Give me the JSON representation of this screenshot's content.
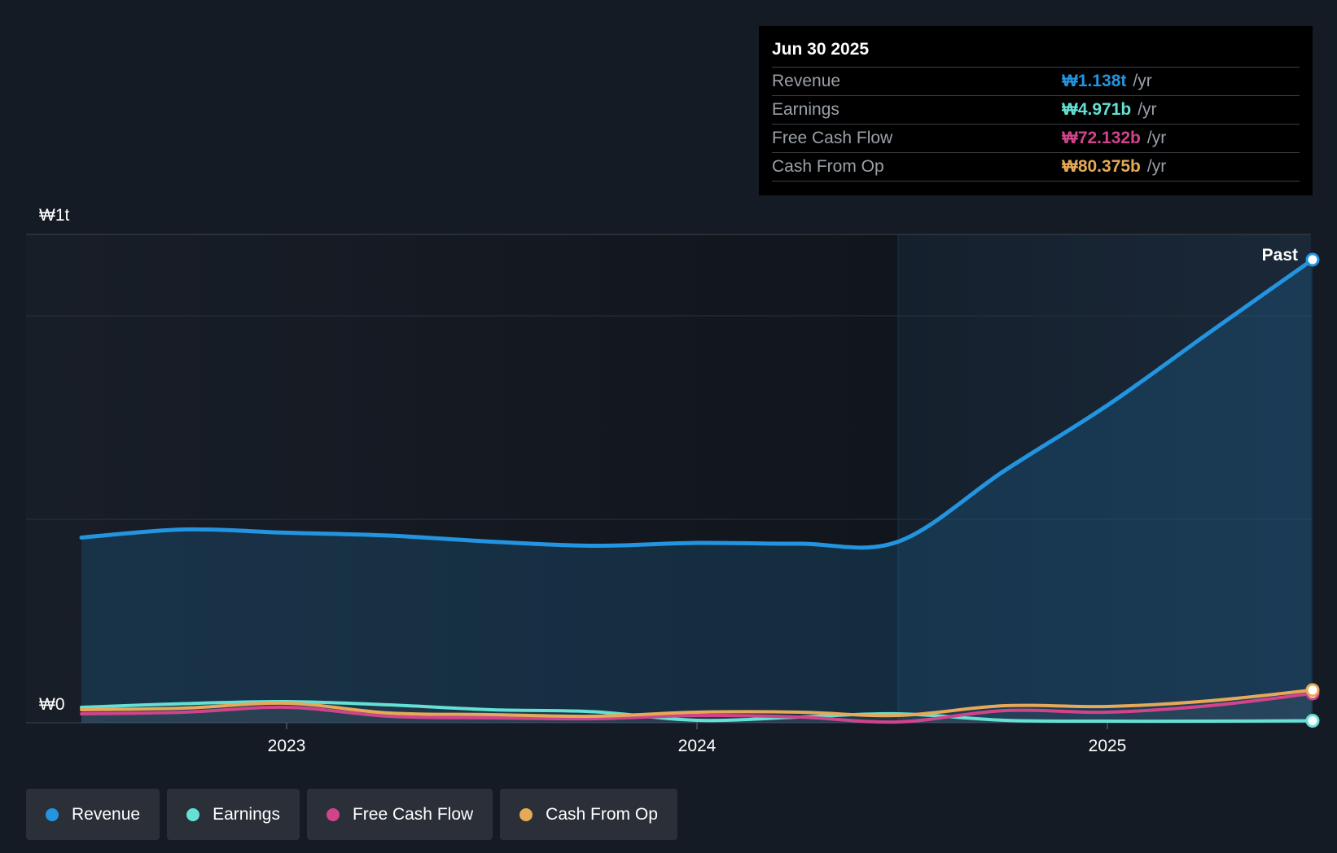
{
  "chart_data": {
    "type": "line",
    "title": "",
    "y_axis": {
      "top_label": "₩1t",
      "bottom_label": "₩0",
      "ylim": [
        0,
        1200
      ]
    },
    "x_ticks": [
      {
        "label": "2023",
        "x": 2023.0
      },
      {
        "label": "2024",
        "x": 2024.0
      },
      {
        "label": "2025",
        "x": 2025.0
      }
    ],
    "xlim": [
      2022.38,
      2025.5
    ],
    "past_boundary": 2024.49,
    "past_label": "Past",
    "series": [
      {
        "name": "Revenue",
        "color": "#2394df",
        "fill": true,
        "points": [
          [
            2022.5,
            455
          ],
          [
            2022.75,
            475
          ],
          [
            2023.0,
            467
          ],
          [
            2023.25,
            460
          ],
          [
            2023.5,
            445
          ],
          [
            2023.75,
            435
          ],
          [
            2024.0,
            442
          ],
          [
            2024.25,
            440
          ],
          [
            2024.49,
            445
          ],
          [
            2024.75,
            620
          ],
          [
            2025.0,
            780
          ],
          [
            2025.25,
            960
          ],
          [
            2025.5,
            1138
          ]
        ]
      },
      {
        "name": "Earnings",
        "color": "#64e1d4",
        "fill": false,
        "points": [
          [
            2022.5,
            38
          ],
          [
            2022.75,
            47
          ],
          [
            2023.0,
            52
          ],
          [
            2023.25,
            44
          ],
          [
            2023.5,
            32
          ],
          [
            2023.75,
            27
          ],
          [
            2024.0,
            6
          ],
          [
            2024.25,
            14
          ],
          [
            2024.49,
            22
          ],
          [
            2024.75,
            6
          ],
          [
            2025.0,
            4
          ],
          [
            2025.25,
            4
          ],
          [
            2025.5,
            4.971
          ]
        ]
      },
      {
        "name": "Free Cash Flow",
        "color": "#d0448c",
        "fill": false,
        "points": [
          [
            2022.5,
            22
          ],
          [
            2022.75,
            26
          ],
          [
            2023.0,
            38
          ],
          [
            2023.25,
            16
          ],
          [
            2023.5,
            12
          ],
          [
            2023.75,
            10
          ],
          [
            2024.0,
            18
          ],
          [
            2024.25,
            14
          ],
          [
            2024.49,
            2
          ],
          [
            2024.75,
            30
          ],
          [
            2025.0,
            26
          ],
          [
            2025.25,
            42
          ],
          [
            2025.5,
            72.132
          ]
        ]
      },
      {
        "name": "Cash From Op",
        "color": "#e5a957",
        "fill": false,
        "points": [
          [
            2022.5,
            32
          ],
          [
            2022.75,
            36
          ],
          [
            2023.0,
            48
          ],
          [
            2023.25,
            24
          ],
          [
            2023.5,
            20
          ],
          [
            2023.75,
            16
          ],
          [
            2024.0,
            26
          ],
          [
            2024.25,
            26
          ],
          [
            2024.49,
            18
          ],
          [
            2024.75,
            42
          ],
          [
            2025.0,
            40
          ],
          [
            2025.25,
            54
          ],
          [
            2025.5,
            80.375
          ]
        ]
      }
    ]
  },
  "tooltip": {
    "date": "Jun 30 2025",
    "rows": [
      {
        "name": "Revenue",
        "value": "₩1.138t",
        "unit": "/yr",
        "color": "#2394df"
      },
      {
        "name": "Earnings",
        "value": "₩4.971b",
        "unit": "/yr",
        "color": "#64e1d4"
      },
      {
        "name": "Free Cash Flow",
        "value": "₩72.132b",
        "unit": "/yr",
        "color": "#d0448c"
      },
      {
        "name": "Cash From Op",
        "value": "₩80.375b",
        "unit": "/yr",
        "color": "#e5a957"
      }
    ]
  },
  "legend": [
    {
      "label": "Revenue",
      "color": "#2394df"
    },
    {
      "label": "Earnings",
      "color": "#64e1d4"
    },
    {
      "label": "Free Cash Flow",
      "color": "#d0448c"
    },
    {
      "label": "Cash From Op",
      "color": "#e5a957"
    }
  ]
}
